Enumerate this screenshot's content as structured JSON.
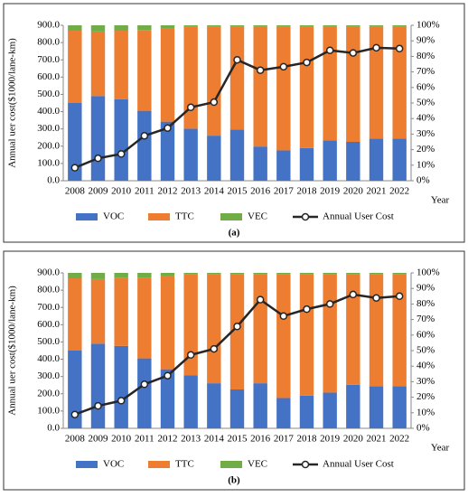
{
  "chart_data": [
    {
      "type": "bar",
      "stacked": true,
      "caption": "(a)",
      "ylabel": "Annual uer cost($1000/lane-km)",
      "xlabel": "Year",
      "legend": "bottom",
      "categories": [
        "2008",
        "2009",
        "2010",
        "2011",
        "2012",
        "2013",
        "2014",
        "2015",
        "2016",
        "2017",
        "2018",
        "2019",
        "2020",
        "2021",
        "2022"
      ],
      "series": [
        {
          "name": "VOC",
          "color": "#4472c4",
          "axis": "y2",
          "values": [
            50,
            54.5,
            52.5,
            45,
            38,
            33.5,
            29,
            33,
            22,
            19.5,
            21,
            26,
            25,
            27,
            27
          ]
        },
        {
          "name": "TTC",
          "color": "#ed7d31",
          "axis": "y2",
          "values": [
            46.5,
            41.5,
            44,
            52,
            60,
            65.5,
            70,
            66,
            77,
            79.5,
            78,
            73,
            74,
            72,
            72
          ]
        },
        {
          "name": "VEC",
          "color": "#70ad47",
          "axis": "y2",
          "values": [
            3.5,
            4,
            3.5,
            3,
            2,
            1,
            1,
            1,
            1,
            1,
            1,
            1,
            1,
            1,
            1
          ]
        },
        {
          "name": "Annual User Cost",
          "color": "#262626",
          "type": "line",
          "values": [
            75,
            130,
            155,
            260,
            305,
            425,
            455,
            700,
            640,
            660,
            685,
            755,
            740,
            770,
            765
          ]
        }
      ],
      "ylim": [
        0,
        900
      ],
      "yticks": [
        {
          "value": 0,
          "label": "0.0"
        },
        {
          "value": 100,
          "label": "100.0"
        },
        {
          "value": 200,
          "label": "200.0"
        },
        {
          "value": 300,
          "label": "300.0"
        },
        {
          "value": 400,
          "label": "400.0"
        },
        {
          "value": 500,
          "label": "500.0"
        },
        {
          "value": 600,
          "label": "600.0"
        },
        {
          "value": 700,
          "label": "700.0"
        },
        {
          "value": 800,
          "label": "800.0"
        },
        {
          "value": 900,
          "label": "900.0"
        }
      ],
      "y2lim": [
        0,
        100
      ],
      "y2ticks": [
        {
          "value": 0,
          "label": "0%"
        },
        {
          "value": 10,
          "label": "10%"
        },
        {
          "value": 20,
          "label": "20%"
        },
        {
          "value": 30,
          "label": "30%"
        },
        {
          "value": 40,
          "label": "40%"
        },
        {
          "value": 50,
          "label": "50%"
        },
        {
          "value": 60,
          "label": "60%"
        },
        {
          "value": 70,
          "label": "70%"
        },
        {
          "value": 80,
          "label": "80%"
        },
        {
          "value": 90,
          "label": "90%"
        },
        {
          "value": 100,
          "label": "100%"
        }
      ]
    },
    {
      "type": "bar",
      "stacked": true,
      "caption": "(b)",
      "ylabel": "Annual uer cost($1000/lane-km)",
      "xlabel": "Year",
      "legend": "bottom",
      "categories": [
        "2008",
        "2009",
        "2010",
        "2011",
        "2012",
        "2013",
        "2014",
        "2015",
        "2016",
        "2017",
        "2018",
        "2019",
        "2020",
        "2021",
        "2022"
      ],
      "series": [
        {
          "name": "VOC",
          "color": "#4472c4",
          "axis": "y2",
          "values": [
            50,
            54.5,
            53,
            45,
            38,
            34,
            29,
            25,
            29,
            19.5,
            21,
            23,
            28,
            27,
            27
          ]
        },
        {
          "name": "TTC",
          "color": "#ed7d31",
          "axis": "y2",
          "values": [
            46.5,
            41.5,
            44,
            52,
            60,
            65,
            70,
            74,
            70,
            79.5,
            78,
            76,
            71,
            72,
            72
          ]
        },
        {
          "name": "VEC",
          "color": "#70ad47",
          "axis": "y2",
          "values": [
            3.5,
            4,
            3,
            3,
            2,
            1,
            1,
            1,
            1,
            1,
            1,
            1,
            1,
            1,
            1
          ]
        },
        {
          "name": "Annual User Cost",
          "color": "#262626",
          "type": "line",
          "values": [
            80,
            130,
            160,
            255,
            305,
            425,
            460,
            590,
            745,
            650,
            690,
            720,
            775,
            755,
            765
          ]
        }
      ],
      "ylim": [
        0,
        900
      ],
      "yticks": [
        {
          "value": 0,
          "label": "0.0"
        },
        {
          "value": 100,
          "label": "100.0"
        },
        {
          "value": 200,
          "label": "200.0"
        },
        {
          "value": 300,
          "label": "300.0"
        },
        {
          "value": 400,
          "label": "400.0"
        },
        {
          "value": 500,
          "label": "500.0"
        },
        {
          "value": 600,
          "label": "600.0"
        },
        {
          "value": 700,
          "label": "700.0"
        },
        {
          "value": 800,
          "label": "800.0"
        },
        {
          "value": 900,
          "label": "900.0"
        }
      ],
      "y2lim": [
        0,
        100
      ],
      "y2ticks": [
        {
          "value": 0,
          "label": "0%"
        },
        {
          "value": 10,
          "label": "10%"
        },
        {
          "value": 20,
          "label": "20%"
        },
        {
          "value": 30,
          "label": "30%"
        },
        {
          "value": 40,
          "label": "40%"
        },
        {
          "value": 50,
          "label": "50%"
        },
        {
          "value": 60,
          "label": "60%"
        },
        {
          "value": 70,
          "label": "70%"
        },
        {
          "value": 80,
          "label": "80%"
        },
        {
          "value": 90,
          "label": "90%"
        },
        {
          "value": 100,
          "label": "100%"
        }
      ]
    }
  ]
}
